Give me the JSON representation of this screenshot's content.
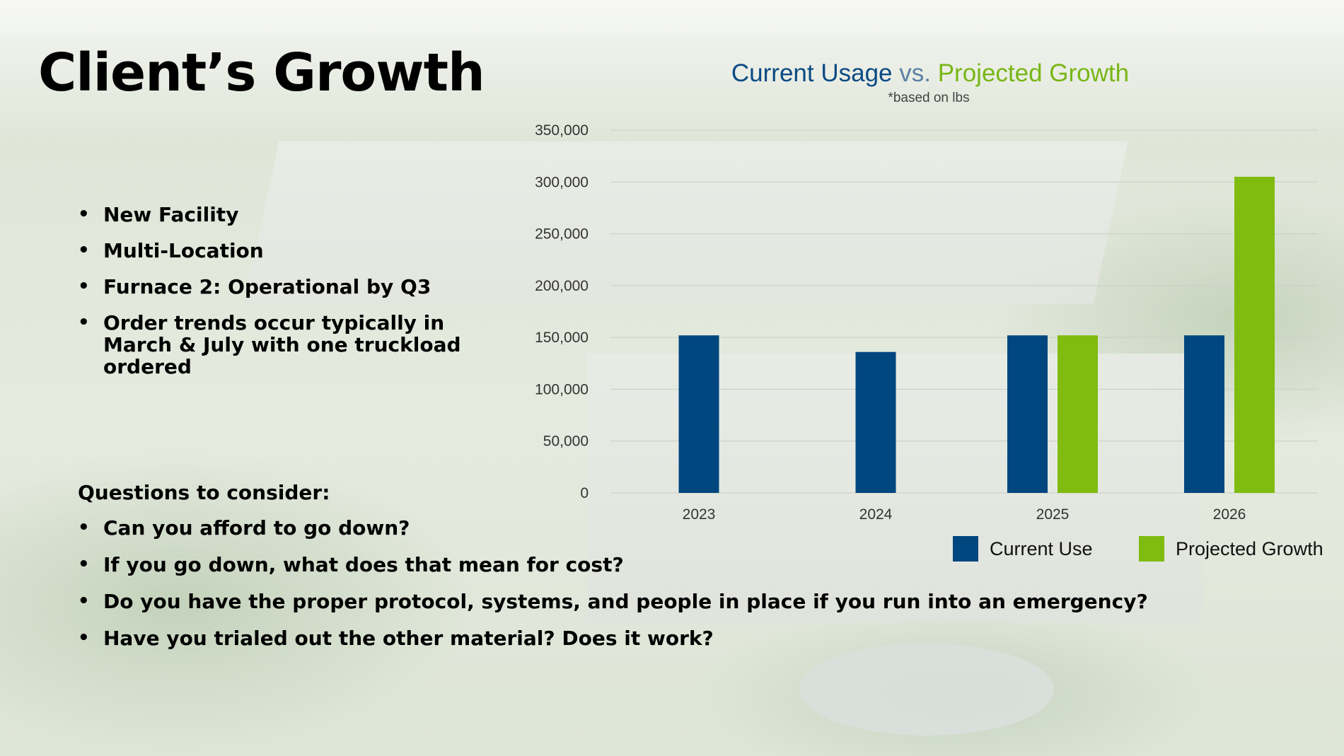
{
  "slide": {
    "title": "Client’s Growth",
    "bullets": [
      "New Facility",
      "Multi-Location",
      "Furnace 2: Operational by Q3",
      "Order trends occur typically in March & July with one truckload ordered"
    ],
    "questions_heading": "Questions to consider:",
    "questions": [
      "Can you afford to go down?",
      "If you go down, what does that mean for cost?",
      "Do you have the proper protocol, systems, and people in place if you run into an emergency?",
      "Have you trialed out the other material? Does it work?"
    ]
  },
  "chart_header": {
    "title_part1": "Current Usage",
    "title_part2": "vs.",
    "title_part3": "Projected Growth",
    "subtitle": "*based on lbs"
  },
  "chart_data": {
    "type": "bar",
    "title": "Current Usage vs. Projected Growth",
    "subtitle": "*based on lbs",
    "categories": [
      "2023",
      "2024",
      "2025",
      "2026"
    ],
    "series": [
      {
        "name": "Current Use",
        "values": [
          152000,
          136000,
          152000,
          152000
        ],
        "color": "#00467f"
      },
      {
        "name": "Projected Growth",
        "values": [
          null,
          null,
          152000,
          305000
        ],
        "color": "#7fbc0f"
      }
    ],
    "ylim": [
      0,
      350000
    ],
    "yticks": [
      0,
      50000,
      100000,
      150000,
      200000,
      250000,
      300000,
      350000
    ],
    "ytick_labels": [
      "0",
      "50,000",
      "100,000",
      "150,000",
      "200,000",
      "250,000",
      "300,000",
      "350,000"
    ],
    "xlabel": "",
    "ylabel": "",
    "grid": true,
    "legend_position": "bottom-right"
  },
  "colors": {
    "current": "#00467f",
    "projected": "#7fbc0f",
    "gridline": "#c9cec5",
    "tick_text": "#333333"
  }
}
